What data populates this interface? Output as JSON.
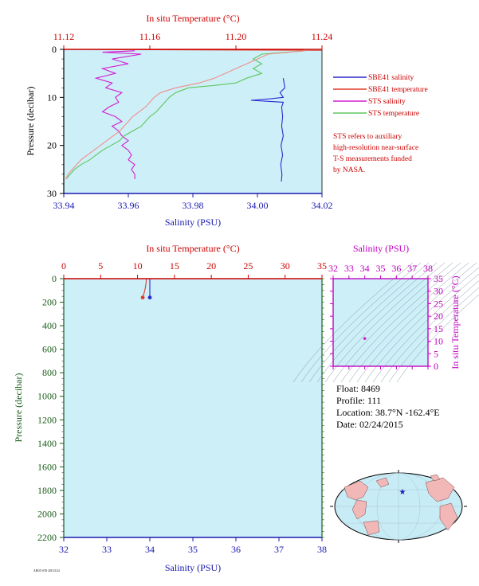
{
  "colors": {
    "plot_bg": "#cdeff8",
    "salinity_axis": "#1a1ab0",
    "temperature_axis": "#cc0000",
    "pressure_axis": "#1a5e1a",
    "ts_axis": "#c000c0",
    "sbe_salinity": "#2a2ad0",
    "sbe_temperature": "#e23a2a",
    "sts_salinity": "#d21ed2",
    "sts_temperature": "#5ec75e",
    "sts_temperature_alt": "#f0908a",
    "ocean": "#c8ecf6",
    "land": "#f2b8b8"
  },
  "legend": {
    "items": [
      {
        "label": "SBE41 salinity",
        "color": "#2a2ad0"
      },
      {
        "label": "SBE41 temperature",
        "color": "#e23a2a"
      },
      {
        "label": "STS salinity",
        "color": "#d21ed2"
      },
      {
        "label": "STS temperature",
        "color": "#5ec75e"
      }
    ],
    "note": [
      "STS refers to auxiliary",
      "high-resolution near-surface",
      "T-S measurements funded",
      "by NASA."
    ]
  },
  "info": {
    "float": "Float:  8469",
    "profile": "Profile:  111",
    "location": "Location:  38.7°N  -162.4°E",
    "date": "Date:  02/24/2015"
  },
  "footer_stamp": "ARGO STS  2015/2/24",
  "chart_data": [
    {
      "type": "line",
      "name": "near-surface profile",
      "top_axis_label": "In situ Temperature (°C)",
      "bottom_axis_label": "Salinity (PSU)",
      "left_axis_label": "Pressure (decibar)",
      "temperature_ticks": [
        "11.12",
        "11.16",
        "11.20",
        "11.24"
      ],
      "temperature_range": [
        11.12,
        11.24
      ],
      "salinity_ticks": [
        "33.94",
        "33.96",
        "33.98",
        "34.00",
        "34.02"
      ],
      "salinity_range": [
        33.94,
        34.02
      ],
      "pressure_ticks": [
        "0",
        "10",
        "20",
        "30"
      ],
      "pressure_range": [
        0,
        30
      ],
      "series": [
        {
          "name": "SBE41 salinity",
          "axis": "salinity",
          "p": [
            6,
            8,
            9,
            10,
            10.3,
            10.6,
            11,
            12,
            14,
            16,
            18,
            20,
            22,
            24,
            26,
            27.5
          ],
          "v": [
            34.008,
            34.0085,
            34.007,
            34.008,
            34.004,
            33.998,
            34.008,
            34.0075,
            34.0078,
            34.0075,
            34.008,
            34.0073,
            34.0078,
            34.0072,
            34.0076,
            34.0074
          ]
        },
        {
          "name": "SBE41 temperature",
          "axis": "temperature",
          "p": [
            0,
            0.2
          ],
          "v": [
            11.12,
            11.24
          ]
        },
        {
          "name": "STS salinity",
          "axis": "salinity",
          "p": [
            0.3,
            0.6,
            1,
            2,
            3,
            4,
            5,
            6,
            7,
            8,
            9,
            10,
            11,
            12,
            13,
            14,
            15,
            16,
            17,
            18,
            19,
            20,
            21,
            22,
            23,
            24,
            25,
            26,
            27
          ],
          "v": [
            33.962,
            33.952,
            33.964,
            33.955,
            33.96,
            33.952,
            33.956,
            33.95,
            33.955,
            33.953,
            33.958,
            33.956,
            33.957,
            33.954,
            33.952,
            33.956,
            33.958,
            33.955,
            33.957,
            33.958,
            33.96,
            33.958,
            33.96,
            33.961,
            33.96,
            33.962,
            33.961,
            33.962,
            33.962
          ]
        },
        {
          "name": "STS temperature",
          "axis": "temperature",
          "p": [
            0.3,
            1,
            2,
            3,
            4,
            5,
            6,
            7,
            7.5,
            8,
            9,
            10,
            11,
            12,
            13,
            14,
            15,
            16,
            17,
            18,
            19,
            20,
            21,
            22,
            23,
            24,
            25,
            26,
            27
          ],
          "v": [
            11.232,
            11.212,
            11.208,
            11.212,
            11.208,
            11.212,
            11.205,
            11.2,
            11.19,
            11.178,
            11.172,
            11.169,
            11.167,
            11.165,
            11.163,
            11.16,
            11.158,
            11.156,
            11.152,
            11.148,
            11.146,
            11.142,
            11.138,
            11.135,
            11.132,
            11.128,
            11.125,
            11.123,
            11.121
          ]
        },
        {
          "name": "STS temperature (alt)",
          "axis": "temperature",
          "p": [
            0.3,
            1,
            2,
            3,
            4,
            5,
            6,
            7,
            8,
            9,
            10,
            11,
            12,
            13,
            14,
            15,
            16,
            17,
            18,
            19,
            20,
            21,
            22,
            23,
            24,
            25,
            26,
            27
          ],
          "v": [
            11.232,
            11.215,
            11.21,
            11.205,
            11.2,
            11.195,
            11.19,
            11.183,
            11.172,
            11.165,
            11.162,
            11.16,
            11.158,
            11.155,
            11.152,
            11.15,
            11.148,
            11.146,
            11.143,
            11.14,
            11.137,
            11.134,
            11.131,
            11.128,
            11.126,
            11.124,
            11.122,
            11.121
          ]
        }
      ]
    },
    {
      "type": "line",
      "name": "full-depth profile",
      "top_axis_label": "In situ Temperature (°C)",
      "bottom_axis_label": "Salinity (PSU)",
      "left_axis_label": "Pressure (decibar)",
      "temperature_ticks": [
        "0",
        "5",
        "10",
        "15",
        "20",
        "25",
        "30",
        "35"
      ],
      "temperature_range": [
        0,
        35
      ],
      "salinity_ticks": [
        "32",
        "33",
        "34",
        "35",
        "36",
        "37",
        "38"
      ],
      "salinity_range": [
        32,
        38
      ],
      "pressure_ticks": [
        "0",
        "200",
        "400",
        "600",
        "800",
        "1000",
        "1200",
        "1400",
        "1600",
        "1800",
        "2000",
        "2200"
      ],
      "pressure_range": [
        0,
        2200
      ],
      "series": [
        {
          "name": "SBE41 salinity",
          "axis": "salinity",
          "p": [
            0,
            160
          ],
          "v": [
            34.0,
            34.0
          ]
        },
        {
          "name": "SBE41 temperature",
          "axis": "temperature",
          "p": [
            0,
            40,
            80,
            120,
            160
          ],
          "v": [
            11.2,
            11.15,
            11.05,
            10.9,
            10.7
          ]
        }
      ]
    },
    {
      "type": "scatter",
      "name": "T-S diagram",
      "top_axis_label": "Salinity (PSU)",
      "right_axis_label": "In situ Temperature (°C)",
      "salinity_ticks": [
        "32",
        "33",
        "34",
        "35",
        "36",
        "37",
        "38"
      ],
      "salinity_range": [
        32,
        38
      ],
      "temperature_ticks": [
        "0",
        "5",
        "10",
        "15",
        "20",
        "25",
        "30",
        "35"
      ],
      "temperature_range": [
        0,
        35
      ],
      "points": [
        {
          "s": 34.0,
          "t": 11.1
        }
      ]
    }
  ]
}
